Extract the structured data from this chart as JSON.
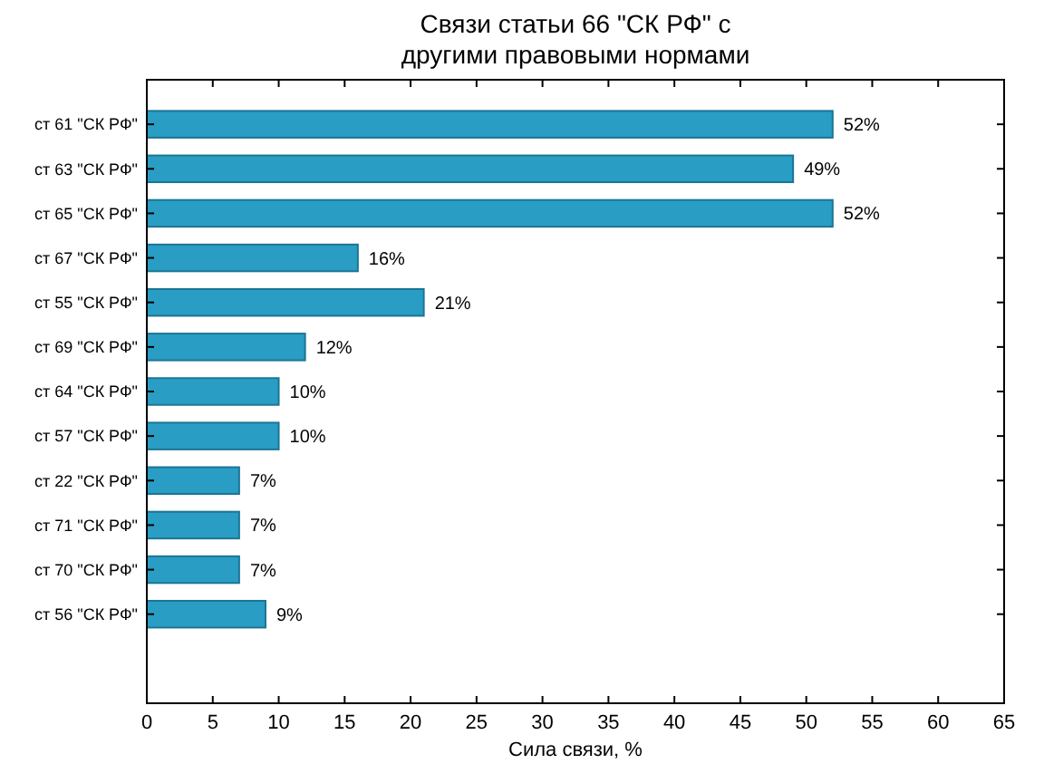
{
  "chart_data": {
    "type": "bar",
    "orientation": "horizontal",
    "title": "Связи статьи 66 \"СК РФ\" с\nдругими правовыми нормами",
    "xlabel": "Сила связи, %",
    "categories": [
      "ст 61 \"СК РФ\"",
      "ст 63 \"СК РФ\"",
      "ст 65 \"СК РФ\"",
      "ст 67 \"СК РФ\"",
      "ст 55 \"СК РФ\"",
      "ст 69 \"СК РФ\"",
      "ст 64 \"СК РФ\"",
      "ст 57 \"СК РФ\"",
      "ст 22 \"СК РФ\"",
      "ст 71 \"СК РФ\"",
      "ст 70 \"СК РФ\"",
      "ст 56 \"СК РФ\""
    ],
    "values": [
      52,
      49,
      52,
      16,
      21,
      12,
      10,
      10,
      7,
      7,
      7,
      9
    ],
    "value_labels": [
      "52%",
      "49%",
      "52%",
      "16%",
      "21%",
      "12%",
      "10%",
      "10%",
      "7%",
      "7%",
      "7%",
      "9%"
    ],
    "color": "#2a9dc4",
    "xlim": [
      0,
      65
    ],
    "xticks": [
      0,
      5,
      10,
      15,
      20,
      25,
      30,
      35,
      40,
      45,
      50,
      55,
      60,
      65
    ],
    "grid": false
  }
}
